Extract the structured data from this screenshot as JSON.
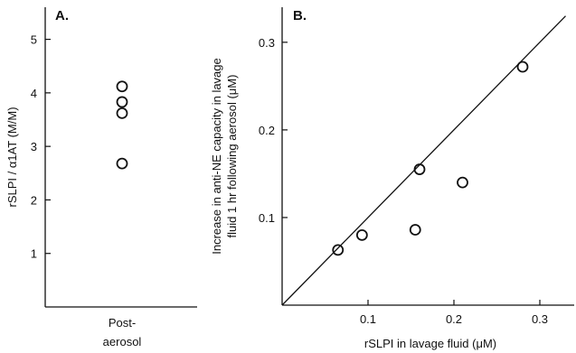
{
  "chart_data": [
    {
      "type": "scatter",
      "panel_label": "A.",
      "ylabel": "rSLPI / α1AT (M/M)",
      "categories": [
        "Post-",
        "aerosol"
      ],
      "ylim": [
        0,
        5.6
      ],
      "yticks": [
        1,
        2,
        3,
        4,
        5
      ],
      "y_tick_labels": [
        "1",
        "2",
        "3",
        "4",
        "5"
      ],
      "values": [
        4.12,
        3.83,
        3.62,
        2.68
      ],
      "marker": "open-circle",
      "grid": false
    },
    {
      "type": "scatter",
      "panel_label": "B.",
      "xlabel": "rSLPI in lavage fluid (μM)",
      "ylabel_lines": [
        "Increase in anti-NE capacity in lavage",
        "fluid 1 hr following aerosol (μM)"
      ],
      "xlim": [
        0,
        0.34
      ],
      "ylim": [
        0,
        0.34
      ],
      "xticks": [
        0.1,
        0.2,
        0.3
      ],
      "x_tick_labels": [
        "0.1",
        "0.2",
        "0.3"
      ],
      "yticks": [
        0.1,
        0.2,
        0.3
      ],
      "y_tick_labels": [
        "0.1",
        "0.2",
        "0.3"
      ],
      "points": [
        {
          "x": 0.065,
          "y": 0.063
        },
        {
          "x": 0.093,
          "y": 0.08
        },
        {
          "x": 0.155,
          "y": 0.086
        },
        {
          "x": 0.16,
          "y": 0.155
        },
        {
          "x": 0.21,
          "y": 0.14
        },
        {
          "x": 0.28,
          "y": 0.272
        }
      ],
      "line_of_identity": {
        "x": [
          0,
          0.33
        ],
        "y": [
          0,
          0.33
        ]
      },
      "marker": "open-circle",
      "grid": false
    }
  ]
}
